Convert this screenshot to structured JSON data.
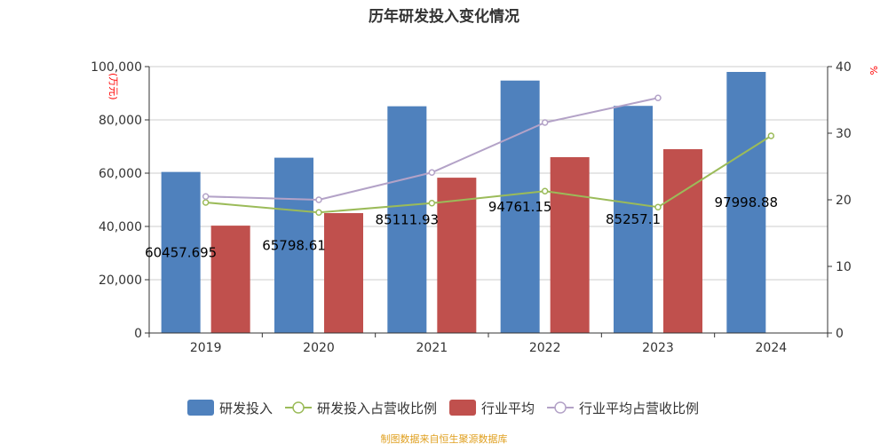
{
  "chart_data": {
    "type": "bar",
    "title": "历年研发投入变化情况",
    "categories": [
      "2019",
      "2020",
      "2021",
      "2022",
      "2023",
      "2024"
    ],
    "y_left": {
      "label": "(万元)",
      "range": [
        0,
        100000
      ],
      "ticks": [
        "0",
        "20,000",
        "40,000",
        "60,000",
        "80,000",
        "100,000"
      ]
    },
    "y_right": {
      "label": "%",
      "range": [
        0,
        40
      ],
      "ticks": [
        "0",
        "10",
        "20",
        "30",
        "40"
      ]
    },
    "grid": true,
    "legend_position": "bottom",
    "series": [
      {
        "name": "研发投入",
        "type": "bar",
        "axis": "left",
        "color": "#4f81bd",
        "values": [
          60457.695,
          65798.61,
          85111.93,
          94761.15,
          85257.1,
          97998.88
        ],
        "labels": [
          "60457.695",
          "65798.61",
          "85111.93",
          "94761.15",
          "85257.1",
          "97998.88"
        ]
      },
      {
        "name": "研发投入占营收比例",
        "type": "line",
        "axis": "right",
        "color": "#9bbb59",
        "values": [
          19.6,
          18.1,
          19.5,
          21.3,
          18.9,
          29.6
        ]
      },
      {
        "name": "行业平均",
        "type": "bar",
        "axis": "left",
        "color": "#c0504d",
        "values": [
          40300,
          45000,
          58300,
          66000,
          69000,
          null
        ]
      },
      {
        "name": "行业平均占营收比例",
        "type": "line",
        "axis": "right",
        "color": "#b3a2c7",
        "values": [
          20.5,
          20.0,
          24.1,
          31.6,
          35.3,
          null
        ]
      }
    ]
  },
  "footer": "制图数据来自恒生聚源数据库"
}
